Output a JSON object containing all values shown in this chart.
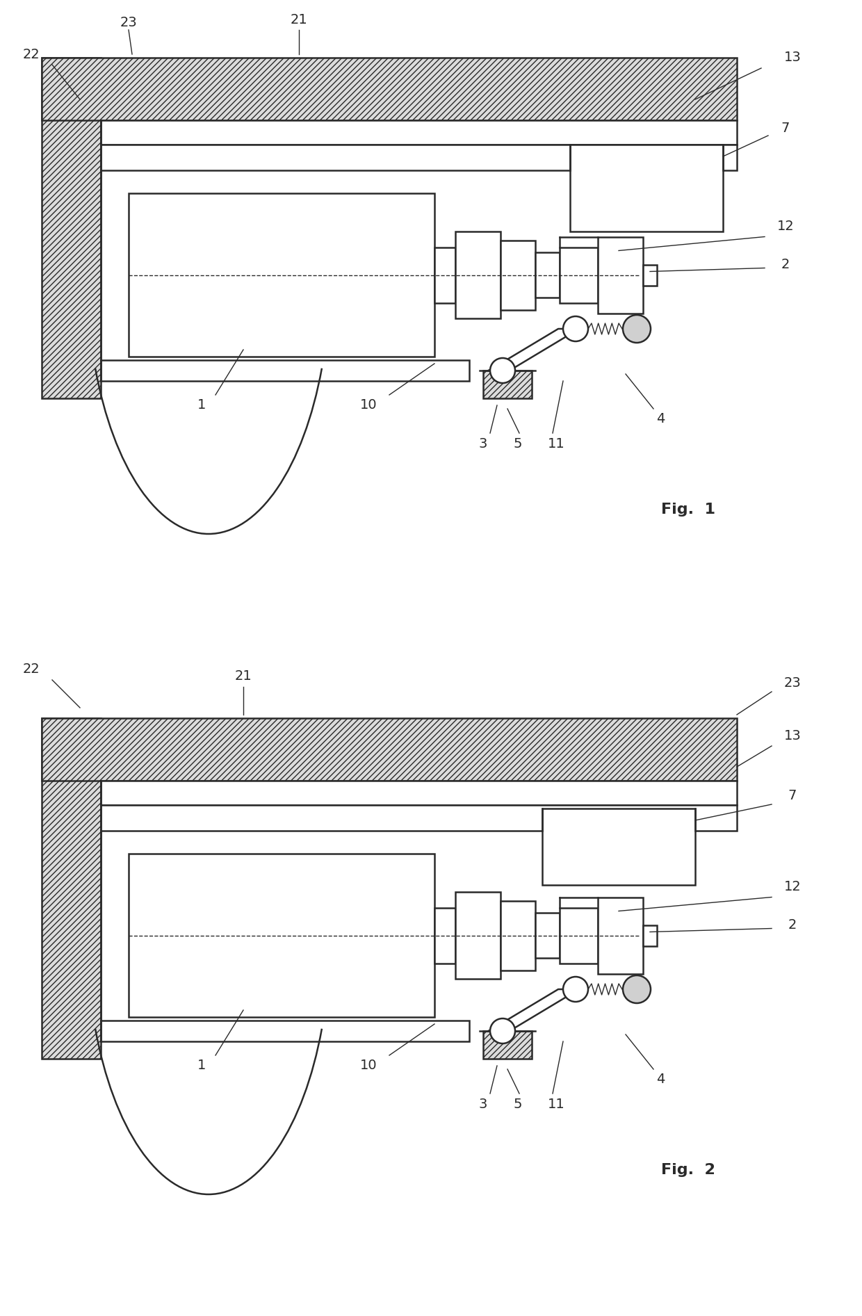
{
  "fig_width": 12.4,
  "fig_height": 18.93,
  "bg_color": "#ffffff",
  "line_color": "#2a2a2a",
  "lw_main": 1.8,
  "lw_thin": 1.0,
  "fs_label": 14,
  "fs_fig": 16
}
